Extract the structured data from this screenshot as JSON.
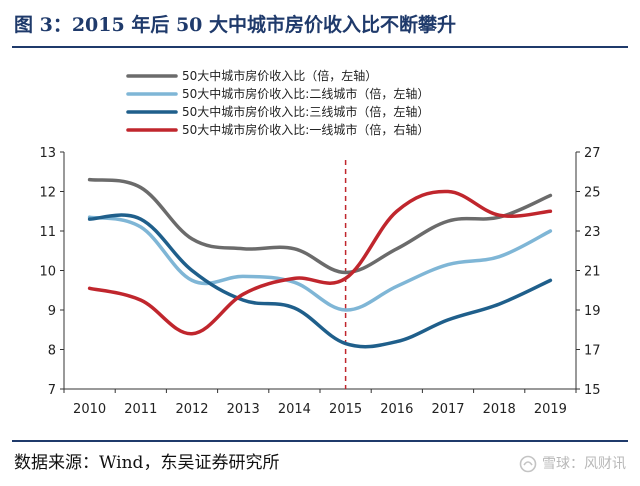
{
  "header": {
    "title": "图 3：2015 年后 50 大中城市房价收入比不断攀升"
  },
  "footer": {
    "source": "数据来源：Wind，东吴证券研究所",
    "watermark": "雪球：风财讯"
  },
  "colors": {
    "title": "#1f3a6b",
    "grey": "#6b6b6b",
    "light_blue": "#7fb6d6",
    "dark_blue": "#1f5f8b",
    "red": "#c0262d"
  },
  "chart_data": {
    "type": "line",
    "title": "",
    "categories": [
      "2010",
      "2011",
      "2012",
      "2013",
      "2014",
      "2015",
      "2016",
      "2017",
      "2018",
      "2019"
    ],
    "y_left": {
      "min": 7,
      "max": 13,
      "ticks": [
        "7",
        "8",
        "9",
        "10",
        "11",
        "12",
        "13"
      ]
    },
    "y_right": {
      "min": 15,
      "max": 27,
      "ticks": [
        "15",
        "17",
        "19",
        "21",
        "23",
        "25",
        "27"
      ]
    },
    "vline_at": "2015",
    "series": [
      {
        "name": "50大中城市房价收入比（倍，左轴）",
        "axis": "left",
        "color": "#6b6b6b",
        "values": [
          12.3,
          12.1,
          10.8,
          10.55,
          10.55,
          9.95,
          10.55,
          11.25,
          11.35,
          11.9
        ]
      },
      {
        "name": "50大中城市房价收入比:二线城市（倍，左轴）",
        "axis": "left",
        "color": "#7fb6d6",
        "values": [
          11.35,
          11.1,
          9.75,
          9.85,
          9.7,
          9.0,
          9.6,
          10.15,
          10.35,
          11.0
        ]
      },
      {
        "name": "50大中城市房价收入比:三线城市（倍，左轴）",
        "axis": "left",
        "color": "#1f5f8b",
        "values": [
          11.3,
          11.3,
          10.0,
          9.25,
          9.05,
          8.15,
          8.2,
          8.75,
          9.15,
          9.75
        ]
      },
      {
        "name": "50大中城市房价收入比:一线城市（倍，右轴）",
        "axis": "right",
        "color": "#c0262d",
        "values": [
          20.1,
          19.5,
          17.8,
          19.8,
          20.6,
          20.6,
          24.0,
          25.0,
          23.8,
          24.0
        ]
      }
    ]
  }
}
